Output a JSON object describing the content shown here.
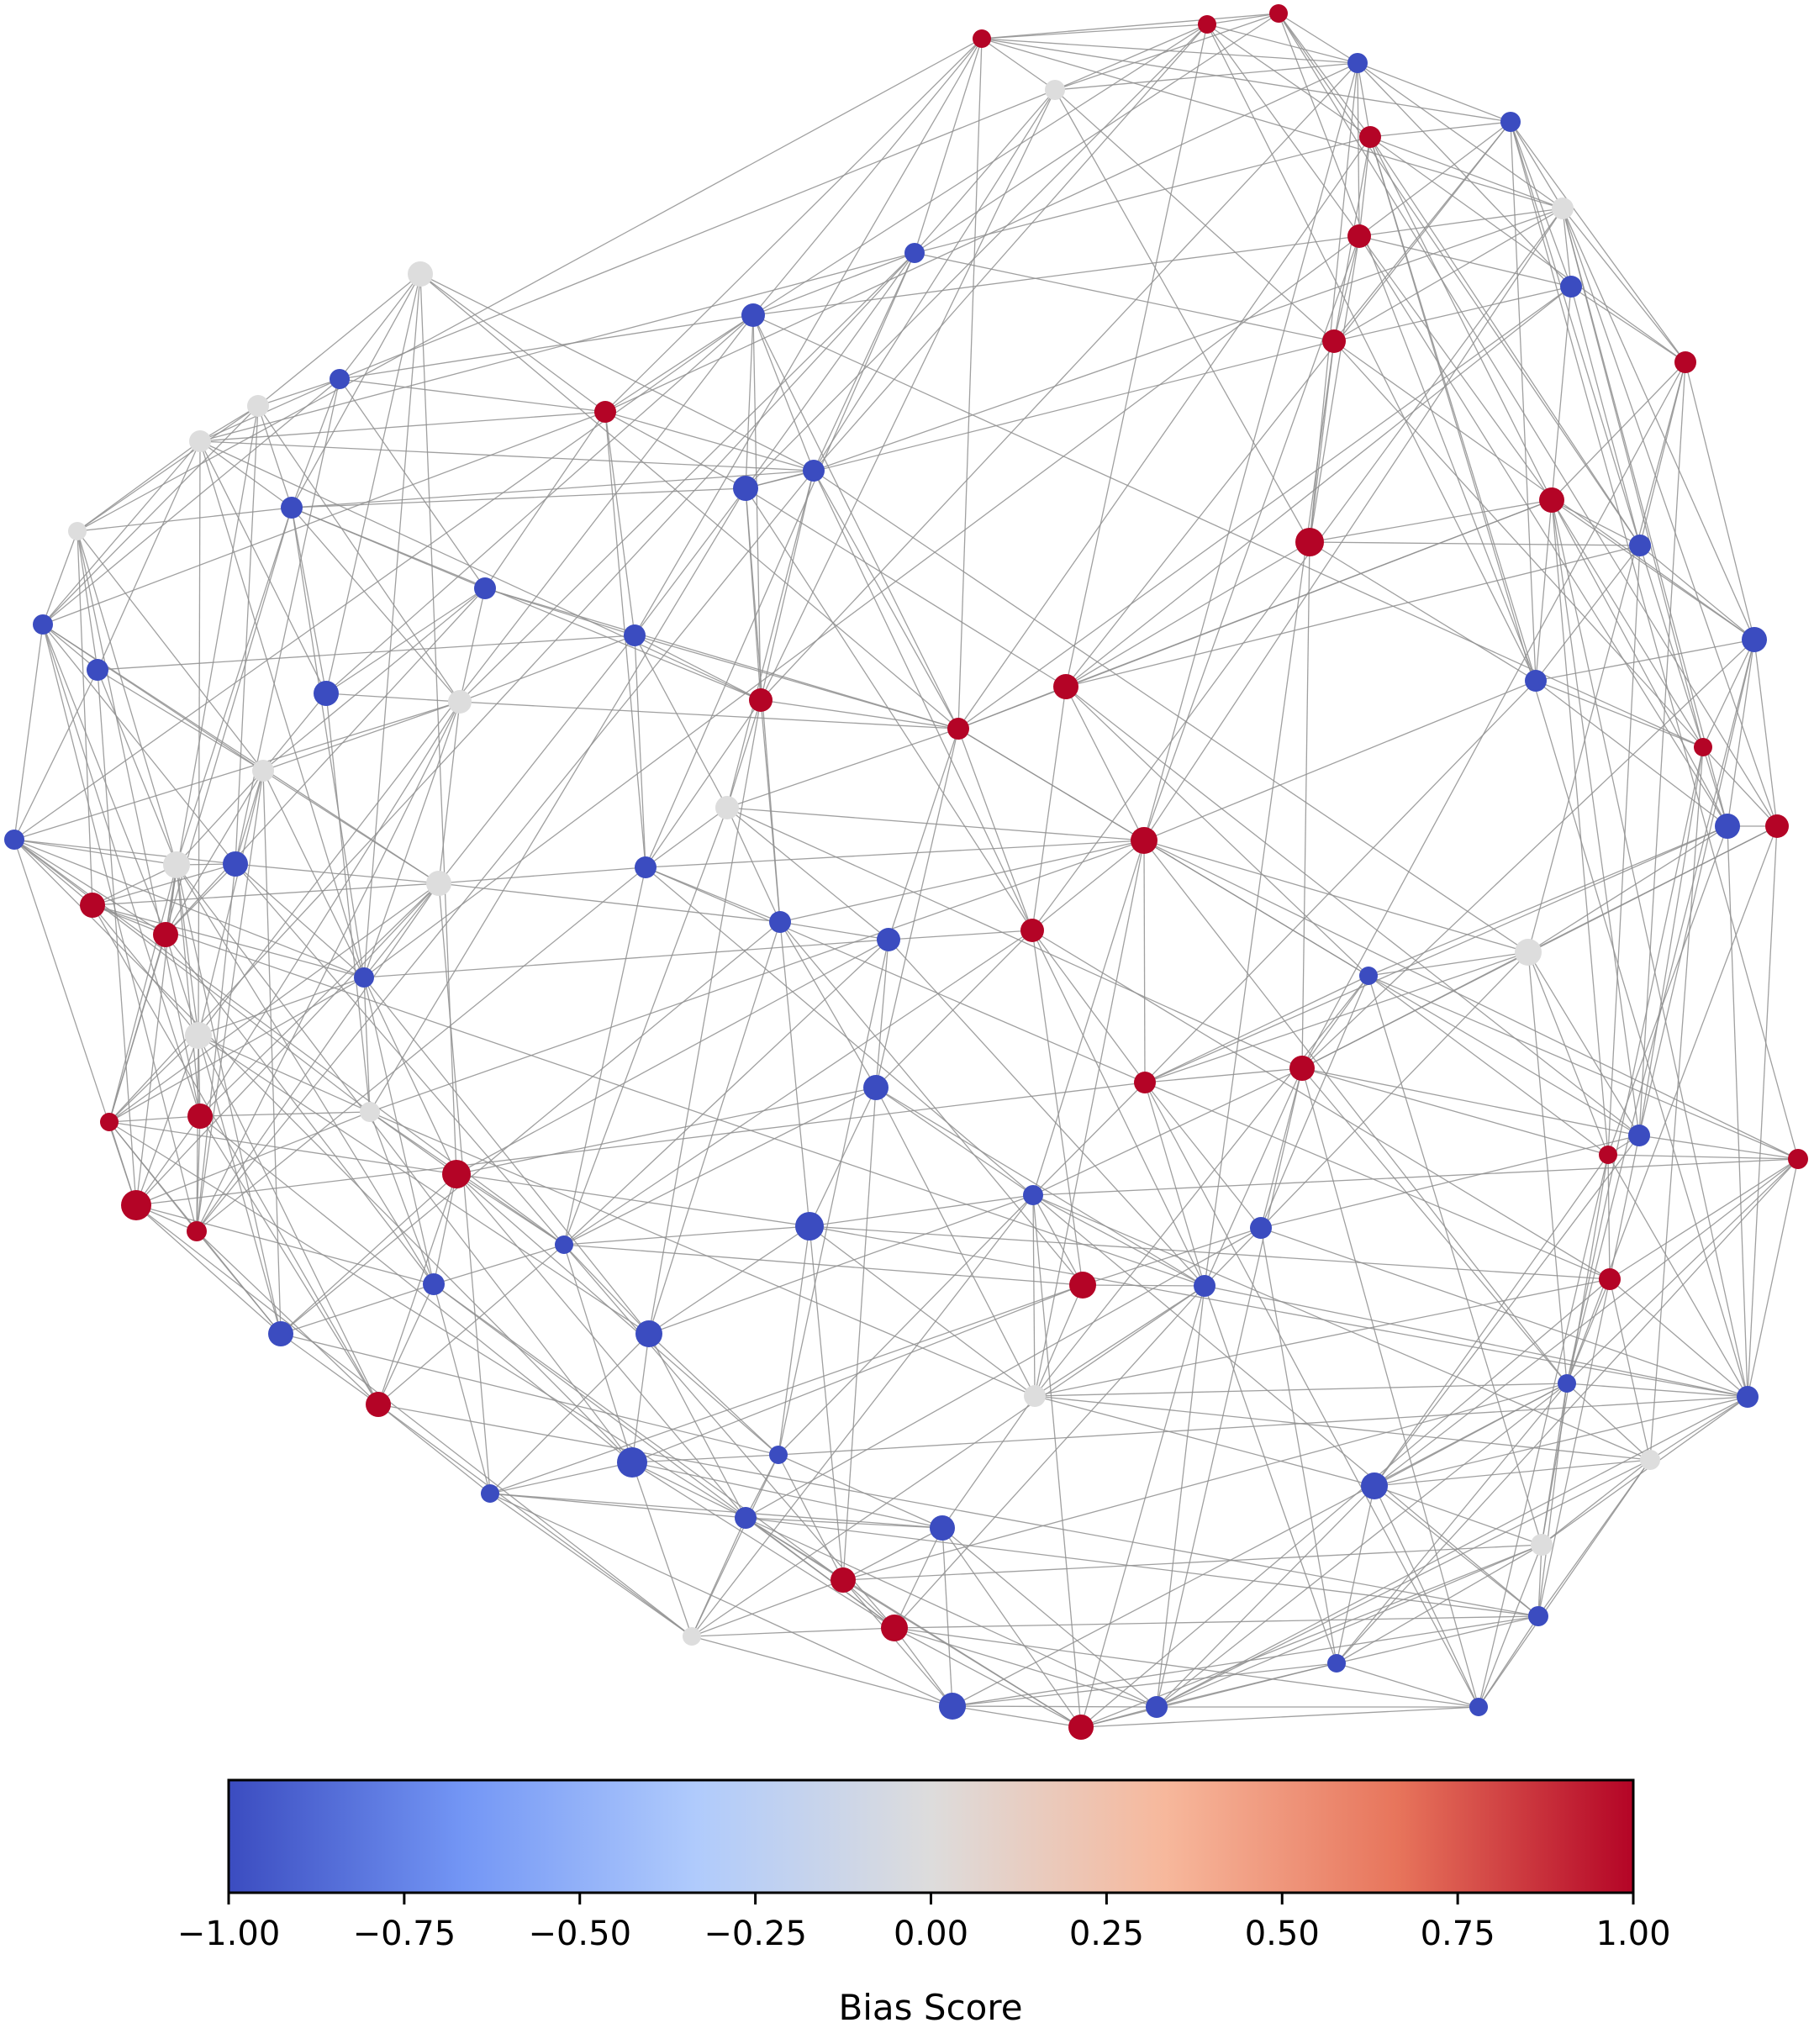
{
  "colorbar": {
    "label": "Bias Score",
    "min": -1.0,
    "max": 1.0,
    "ticks": [
      {
        "value": -1.0,
        "label": "−1.00"
      },
      {
        "value": -0.75,
        "label": "−0.75"
      },
      {
        "value": -0.5,
        "label": "−0.50"
      },
      {
        "value": -0.25,
        "label": "−0.25"
      },
      {
        "value": 0.0,
        "label": "0.00"
      },
      {
        "value": 0.25,
        "label": "0.25"
      },
      {
        "value": 0.5,
        "label": "0.50"
      },
      {
        "value": 0.75,
        "label": "0.75"
      },
      {
        "value": 1.0,
        "label": "1.00"
      }
    ],
    "colormap": "coolwarm",
    "stops": [
      "#3b4cc0",
      "#7396f5",
      "#b0cbfc",
      "#dddcdc",
      "#f7b89c",
      "#e7745b",
      "#b40426"
    ]
  },
  "colors": {
    "negative": "#3b4cc0",
    "neutral": "#dddddd",
    "positive": "#b40426",
    "edge": "#8f8f8f"
  }
}
